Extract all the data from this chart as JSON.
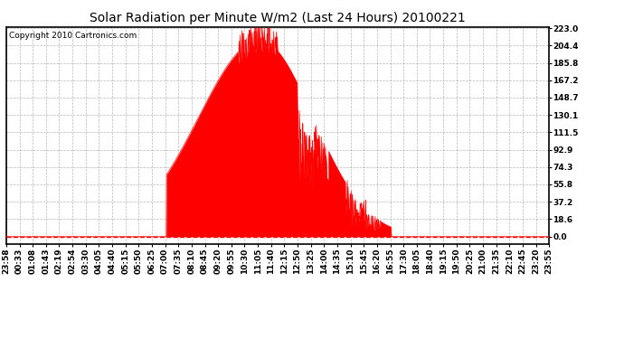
{
  "title": "Solar Radiation per Minute W/m2 (Last 24 Hours) 20100221",
  "copyright_text": "Copyright 2010 Cartronics.com",
  "yticks": [
    0.0,
    18.6,
    37.2,
    55.8,
    74.3,
    92.9,
    111.5,
    130.1,
    148.7,
    167.2,
    185.8,
    204.4,
    223.0
  ],
  "ymax": 223.0,
  "ymin": 0.0,
  "bar_color": "#FF0000",
  "bg_color": "#FFFFFF",
  "grid_color": "#888888",
  "baseline_color": "#FF0000",
  "title_fontsize": 10,
  "tick_fontsize": 6.5,
  "x_tick_labels": [
    "23:58",
    "00:33",
    "01:08",
    "01:43",
    "02:19",
    "02:54",
    "03:30",
    "04:05",
    "04:40",
    "05:15",
    "05:50",
    "06:25",
    "07:00",
    "07:35",
    "08:10",
    "08:45",
    "09:20",
    "09:55",
    "10:30",
    "11:05",
    "11:40",
    "12:15",
    "12:50",
    "13:25",
    "14:00",
    "14:35",
    "15:10",
    "15:45",
    "16:20",
    "16:55",
    "17:30",
    "18:05",
    "18:40",
    "19:15",
    "19:50",
    "20:25",
    "21:00",
    "21:35",
    "22:10",
    "22:45",
    "23:20",
    "23:55"
  ]
}
